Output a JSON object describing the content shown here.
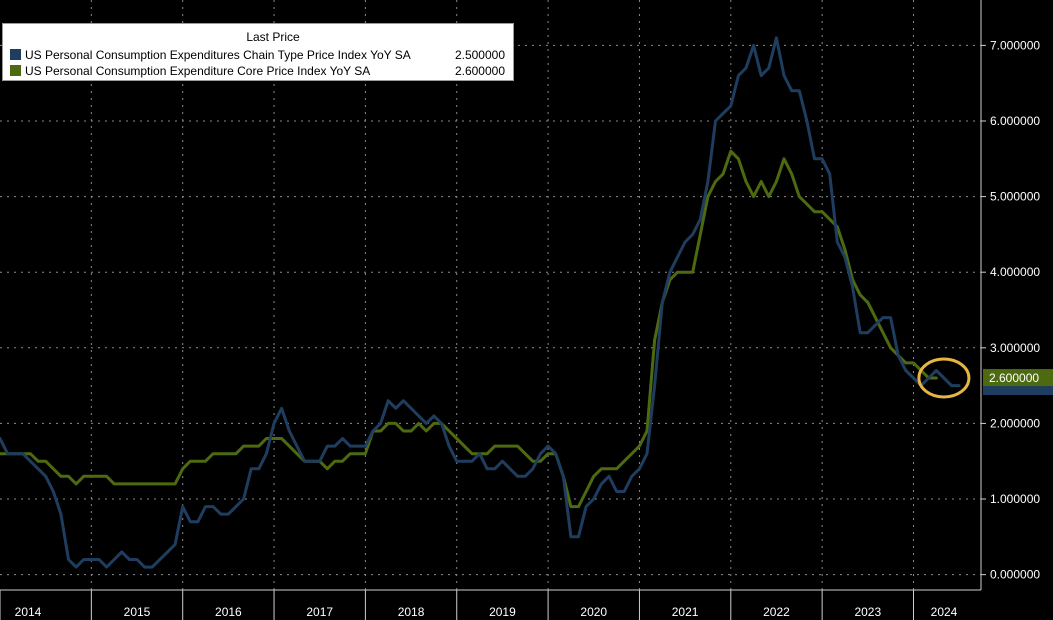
{
  "colors": {
    "background": "#000000",
    "grid": "#8c8c8c",
    "axis_text": "#ffffff",
    "highlight_circle": "#e6b640"
  },
  "legend": {
    "header": "Last Price"
  },
  "chart_data": {
    "type": "line",
    "title": "",
    "xlabel": "",
    "ylabel": "",
    "x_start": 2014.0,
    "x_step": 0.08333,
    "xlim": [
      2014.0,
      2024.75
    ],
    "ylim": [
      -0.6,
      7.6
    ],
    "y_ticks": [
      0,
      1,
      2,
      3,
      4,
      5,
      6,
      7
    ],
    "y_tick_labels": [
      "0.000000",
      "1.000000",
      "2.000000",
      "3.000000",
      "4.000000",
      "5.000000",
      "6.000000",
      "7.000000"
    ],
    "x_tick_labels": [
      "2014",
      "2015",
      "2016",
      "2017",
      "2018",
      "2019",
      "2020",
      "2021",
      "2022",
      "2023",
      "2024"
    ],
    "legend_position": "top-left",
    "annotation": "highlight circle around latest values",
    "series": [
      {
        "name": "US Personal Consumption Expenditures Chain Type Price Index YoY SA",
        "last_value": "2.500000",
        "color": "#1f3d5e",
        "values": [
          1.8,
          1.6,
          1.6,
          1.6,
          1.5,
          1.4,
          1.3,
          1.1,
          0.8,
          0.2,
          0.1,
          0.2,
          0.2,
          0.2,
          0.1,
          0.2,
          0.3,
          0.2,
          0.2,
          0.1,
          0.1,
          0.2,
          0.3,
          0.4,
          0.9,
          0.7,
          0.7,
          0.9,
          0.9,
          0.8,
          0.8,
          0.9,
          1.0,
          1.4,
          1.4,
          1.6,
          2.0,
          2.2,
          1.9,
          1.7,
          1.5,
          1.5,
          1.5,
          1.7,
          1.7,
          1.8,
          1.7,
          1.7,
          1.7,
          1.9,
          2.0,
          2.3,
          2.2,
          2.3,
          2.2,
          2.1,
          2.0,
          2.1,
          2.0,
          1.7,
          1.5,
          1.5,
          1.5,
          1.6,
          1.4,
          1.4,
          1.5,
          1.4,
          1.3,
          1.3,
          1.4,
          1.6,
          1.7,
          1.6,
          1.3,
          0.5,
          0.5,
          0.9,
          1.0,
          1.2,
          1.3,
          1.1,
          1.1,
          1.3,
          1.4,
          1.6,
          2.5,
          3.6,
          4.0,
          4.2,
          4.4,
          4.5,
          4.7,
          5.2,
          6.0,
          6.1,
          6.2,
          6.6,
          6.7,
          7.0,
          6.6,
          6.7,
          7.1,
          6.6,
          6.4,
          6.4,
          6.0,
          5.5,
          5.5,
          5.3,
          4.4,
          4.2,
          3.8,
          3.2,
          3.2,
          3.3,
          3.4,
          3.4,
          2.9,
          2.7,
          2.6,
          2.5,
          2.6,
          2.7,
          2.6,
          2.5,
          2.5
        ]
      },
      {
        "name": "US Personal Consumption Expenditure Core Price Index YoY SA",
        "last_value": "2.600000",
        "color": "#4e6a10",
        "values": [
          1.6,
          1.6,
          1.6,
          1.6,
          1.6,
          1.5,
          1.5,
          1.4,
          1.3,
          1.3,
          1.2,
          1.3,
          1.3,
          1.3,
          1.3,
          1.2,
          1.2,
          1.2,
          1.2,
          1.2,
          1.2,
          1.2,
          1.2,
          1.2,
          1.4,
          1.5,
          1.5,
          1.5,
          1.6,
          1.6,
          1.6,
          1.6,
          1.7,
          1.7,
          1.7,
          1.8,
          1.8,
          1.8,
          1.7,
          1.6,
          1.5,
          1.5,
          1.5,
          1.4,
          1.5,
          1.5,
          1.6,
          1.6,
          1.6,
          1.9,
          1.9,
          2.0,
          2.0,
          1.9,
          1.9,
          2.0,
          1.9,
          2.0,
          2.0,
          1.9,
          1.8,
          1.7,
          1.6,
          1.6,
          1.6,
          1.7,
          1.7,
          1.7,
          1.7,
          1.6,
          1.5,
          1.5,
          1.6,
          1.6,
          1.3,
          0.9,
          0.9,
          1.1,
          1.3,
          1.4,
          1.4,
          1.4,
          1.5,
          1.6,
          1.7,
          1.9,
          3.1,
          3.6,
          3.9,
          4.0,
          4.0,
          4.0,
          4.5,
          5.0,
          5.2,
          5.3,
          5.6,
          5.5,
          5.2,
          5.0,
          5.2,
          5.0,
          5.2,
          5.5,
          5.3,
          5.0,
          4.9,
          4.8,
          4.8,
          4.7,
          4.6,
          4.3,
          3.9,
          3.7,
          3.6,
          3.4,
          3.2,
          3.0,
          2.9,
          2.8,
          2.8,
          2.7,
          2.6,
          2.6
        ]
      }
    ]
  }
}
